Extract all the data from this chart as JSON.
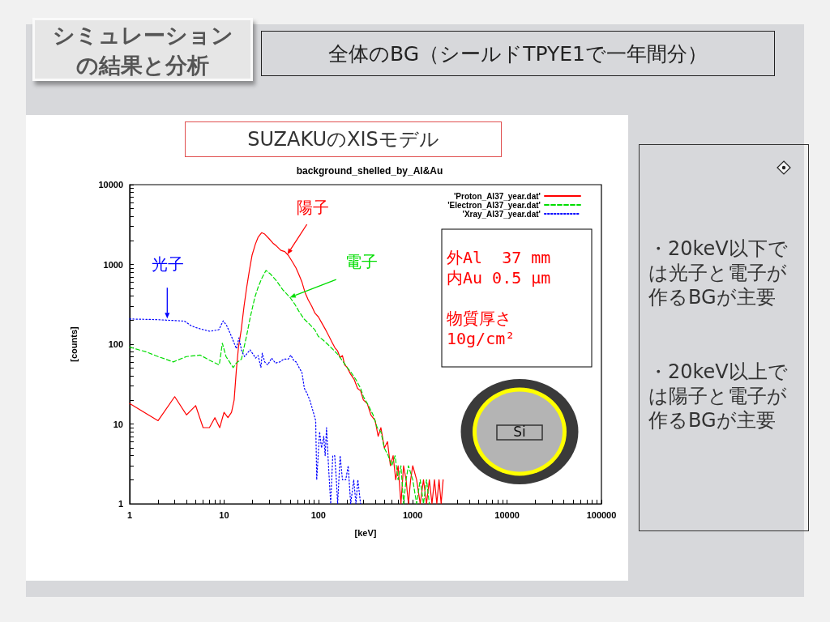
{
  "chart_data": {
    "type": "line",
    "title": "background_shelled_by_Al&Au",
    "xlabel": "[keV]",
    "ylabel": "[counts]",
    "log": "xy",
    "legend": "top right",
    "xlim": [
      1,
      100000
    ],
    "ylim": [
      1,
      10000
    ],
    "xticks": [
      1,
      {
        "value": 2,
        "label": null
      },
      {
        "value": 3,
        "label": null
      },
      {
        "value": 4,
        "label": null
      },
      {
        "value": 5,
        "label": null
      },
      {
        "value": 6,
        "label": null
      },
      {
        "value": 7,
        "label": null
      },
      {
        "value": 8,
        "label": null
      },
      {
        "value": 9,
        "label": null
      },
      10,
      {
        "value": 20,
        "label": null
      },
      {
        "value": 30,
        "label": null
      },
      {
        "value": 40,
        "label": null
      },
      {
        "value": 50,
        "label": null
      },
      {
        "value": 60,
        "label": null
      },
      {
        "value": 70,
        "label": null
      },
      {
        "value": 80,
        "label": null
      },
      {
        "value": 90,
        "label": null
      },
      100,
      {
        "value": 200,
        "label": null
      },
      {
        "value": 300,
        "label": null
      },
      {
        "value": 400,
        "label": null
      },
      {
        "value": 500,
        "label": null
      },
      {
        "value": 600,
        "label": null
      },
      {
        "value": 700,
        "label": null
      },
      {
        "value": 800,
        "label": null
      },
      {
        "value": 900,
        "label": null
      },
      1000,
      {
        "value": 2000,
        "label": null
      },
      {
        "value": 3000,
        "label": null
      },
      {
        "value": 4000,
        "label": null
      },
      {
        "value": 5000,
        "label": null
      },
      {
        "value": 6000,
        "label": null
      },
      {
        "value": 7000,
        "label": null
      },
      {
        "value": 8000,
        "label": null
      },
      {
        "value": 9000,
        "label": null
      },
      10000,
      {
        "value": 20000,
        "label": null
      },
      {
        "value": 30000,
        "label": null
      },
      {
        "value": 40000,
        "label": null
      },
      {
        "value": 50000,
        "label": null
      },
      {
        "value": 60000,
        "label": null
      },
      {
        "value": 70000,
        "label": null
      },
      {
        "value": 80000,
        "label": null
      },
      {
        "value": 90000,
        "label": null
      },
      100000
    ],
    "yticks": [
      1,
      {
        "value": 2,
        "label": null
      },
      {
        "value": 3,
        "label": null
      },
      {
        "value": 4,
        "label": null
      },
      {
        "value": 5,
        "label": null
      },
      {
        "value": 6,
        "label": null
      },
      {
        "value": 7,
        "label": null
      },
      {
        "value": 8,
        "label": null
      },
      {
        "value": 9,
        "label": null
      },
      10,
      {
        "value": 20,
        "label": null
      },
      {
        "value": 30,
        "label": null
      },
      {
        "value": 40,
        "label": null
      },
      {
        "value": 50,
        "label": null
      },
      {
        "value": 60,
        "label": null
      },
      {
        "value": 70,
        "label": null
      },
      {
        "value": 80,
        "label": null
      },
      {
        "value": 90,
        "label": null
      },
      100,
      {
        "value": 200,
        "label": null
      },
      {
        "value": 300,
        "label": null
      },
      {
        "value": 400,
        "label": null
      },
      {
        "value": 500,
        "label": null
      },
      {
        "value": 600,
        "label": null
      },
      {
        "value": 700,
        "label": null
      },
      {
        "value": 800,
        "label": null
      },
      {
        "value": 900,
        "label": null
      },
      1000,
      {
        "value": 2000,
        "label": null
      },
      {
        "value": 3000,
        "label": null
      },
      {
        "value": 4000,
        "label": null
      },
      {
        "value": 5000,
        "label": null
      },
      {
        "value": 6000,
        "label": null
      },
      {
        "value": 7000,
        "label": null
      },
      {
        "value": 8000,
        "label": null
      },
      {
        "value": 9000,
        "label": null
      },
      10000
    ],
    "series": [
      {
        "name": "'Proton_Al37_year.dat'",
        "color": "#ff0000",
        "line_style": "solid",
        "x": [
          1,
          2,
          3,
          4,
          5,
          6,
          7,
          8,
          9,
          10,
          11,
          12,
          12.8,
          13.5,
          14.2,
          15.2,
          16.3,
          17.4,
          18.6,
          19.8,
          21.5,
          23,
          25,
          27,
          30,
          33,
          36,
          40,
          44,
          48,
          53,
          58,
          62,
          67,
          72,
          78,
          85,
          92,
          100,
          110,
          120,
          130,
          140,
          150,
          160,
          170,
          180,
          190,
          200,
          220,
          240,
          260,
          280,
          300,
          330,
          360,
          400,
          430,
          460,
          500,
          540,
          580,
          620,
          660,
          700,
          750,
          800,
          850,
          900,
          950,
          1000,
          1100,
          1200,
          1300,
          1400,
          1500,
          1600,
          1700,
          1800,
          1900,
          2000,
          2100
        ],
        "values": [
          18,
          11,
          22,
          13,
          17,
          9,
          9,
          12,
          9,
          14,
          12,
          14,
          20,
          47,
          90,
          150,
          300,
          520,
          850,
          1300,
          1800,
          2200,
          2500,
          2400,
          2100,
          1850,
          1700,
          1500,
          1450,
          1300,
          1080,
          900,
          750,
          600,
          450,
          360,
          300,
          245,
          220,
          180,
          150,
          125,
          105,
          90,
          82,
          68,
          72,
          55,
          52,
          42,
          36,
          28,
          26,
          20,
          18,
          13,
          11,
          7,
          9,
          5,
          6,
          3,
          4,
          2,
          3,
          1,
          3,
          2,
          1,
          2,
          3,
          2,
          1,
          2,
          1,
          2,
          1,
          2,
          1,
          2,
          1,
          2
        ]
      },
      {
        "name": "'Electron_Al37_year.dat'",
        "color": "#00dd00",
        "line_style": "dashed",
        "x": [
          1,
          1.5,
          2,
          2.9,
          4,
          5.6,
          7,
          8.9,
          9.6,
          10.5,
          12.5,
          13.5,
          15.3,
          17.4,
          19,
          21.2,
          23,
          25.1,
          27.8,
          31,
          36.2,
          42,
          50,
          56,
          62,
          70.5,
          80,
          91.5,
          100,
          110,
          122,
          140,
          160,
          180,
          200,
          220,
          250,
          280,
          300,
          340,
          380,
          420,
          460,
          500,
          550,
          600,
          650,
          700,
          750,
          800,
          850,
          900,
          1000,
          1100,
          1200,
          1300,
          1400,
          1500
        ],
        "values": [
          92,
          80,
          70,
          60,
          70,
          73,
          63,
          55,
          103,
          70,
          51,
          58,
          65,
          130,
          220,
          386,
          520,
          667,
          841,
          760,
          617,
          480,
          386,
          320,
          260,
          207,
          180,
          152,
          125,
          115,
          103,
          88,
          75,
          62,
          52,
          45,
          36,
          28,
          22,
          17,
          13,
          9,
          8,
          5,
          4,
          3,
          4,
          2,
          3,
          1,
          2,
          3,
          2,
          1,
          2,
          1,
          2,
          1
        ]
      },
      {
        "name": "'Xray_Al37_year.dat'",
        "color": "#0000ff",
        "line_style": "dotted",
        "x": [
          1,
          1.5,
          2,
          2.5,
          3,
          3.8,
          4.5,
          5,
          5.7,
          7.1,
          8.8,
          9.8,
          10.7,
          12,
          13.5,
          14.4,
          15.4,
          16.5,
          18.9,
          21.6,
          23,
          24.6,
          25.4,
          27,
          29,
          32,
          35,
          39,
          43,
          48,
          51,
          55,
          58,
          63,
          67,
          71,
          76,
          81,
          87,
          93.7,
          96,
          103,
          108,
          114,
          118,
          122,
          128,
          135,
          142,
          149,
          155,
          160,
          170,
          180,
          195,
          207,
          220,
          237,
          250,
          262,
          280
        ],
        "values": [
          207,
          205,
          203,
          200,
          198,
          195,
          170,
          162,
          155,
          145,
          152,
          196,
          170,
          125,
          88,
          120,
          82,
          70,
          85,
          67,
          72,
          51,
          77,
          60,
          55,
          67,
          58,
          60,
          65,
          65,
          73,
          62,
          60,
          50,
          44,
          28,
          24,
          20,
          15,
          11,
          2,
          8,
          5,
          7,
          4,
          9,
          3,
          1,
          4,
          4,
          2,
          1,
          4,
          2,
          2,
          3,
          1,
          2,
          1,
          2,
          1
        ]
      }
    ],
    "annotations": [
      "シミュレーションの結果と分析",
      "全体のBG（シールドTPYE1で一年間分）",
      "SUZAKUのXISモデル",
      {
        "text": "陽子",
        "x": 47,
        "y": 1340
      },
      {
        "text": "電子",
        "x": 50,
        "y": 386
      },
      {
        "text": "光子",
        "x": 2.5,
        "y": 210
      },
      "外Al  37 mm\n内Au 0.5 μm\n\n物質厚さ\n10g/cm²",
      "Si",
      "・20keV以下では光子と電子が作るBGが主要",
      "・20keV以上では陽子と電子が作るBGが主要"
    ]
  }
}
